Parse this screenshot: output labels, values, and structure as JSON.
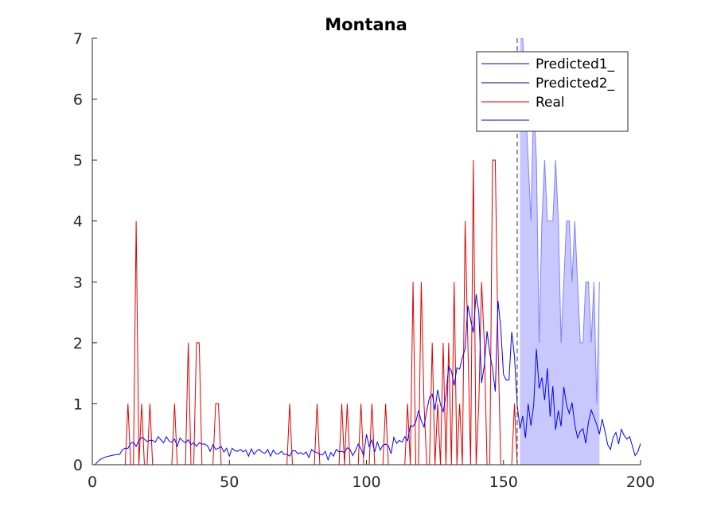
{
  "chart_data": {
    "type": "line",
    "title": "Montana",
    "xlabel": "",
    "ylabel": "",
    "xlim": [
      0,
      200
    ],
    "ylim": [
      0,
      7
    ],
    "xticks": [
      0,
      50,
      100,
      150,
      200
    ],
    "yticks": [
      0,
      1,
      2,
      3,
      4,
      5,
      6,
      7
    ],
    "grid": false,
    "legend_position": "top-right",
    "vline_x": 155,
    "x_start": 1,
    "series": [
      {
        "name": "Predicted1_",
        "color": "#0000ff",
        "style": "line",
        "values": [
          0.0,
          0.05,
          0.09,
          0.11,
          0.13,
          0.14,
          0.15,
          0.16,
          0.17,
          0.17,
          0.25,
          0.27,
          0.27,
          0.35,
          0.37,
          0.3,
          0.4,
          0.45,
          0.42,
          0.38,
          0.4,
          0.4,
          0.37,
          0.46,
          0.41,
          0.36,
          0.46,
          0.39,
          0.37,
          0.42,
          0.3,
          0.44,
          0.39,
          0.36,
          0.41,
          0.33,
          0.36,
          0.3,
          0.36,
          0.34,
          0.34,
          0.31,
          0.22,
          0.33,
          0.25,
          0.27,
          0.3,
          0.21,
          0.27,
          0.14,
          0.27,
          0.23,
          0.22,
          0.25,
          0.21,
          0.24,
          0.14,
          0.26,
          0.17,
          0.23,
          0.25,
          0.2,
          0.19,
          0.25,
          0.14,
          0.24,
          0.18,
          0.18,
          0.22,
          0.17,
          0.17,
          0.14,
          0.23,
          0.23,
          0.18,
          0.2,
          0.17,
          0.21,
          0.12,
          0.25,
          0.21,
          0.2,
          0.17,
          0.16,
          0.22,
          0.08,
          0.2,
          0.14,
          0.25,
          0.21,
          0.22,
          0.2,
          0.28,
          0.25,
          0.15,
          0.23,
          0.34,
          0.26,
          0.15,
          0.5,
          0.3,
          0.41,
          0.21,
          0.37,
          0.24,
          0.32,
          0.34,
          0.31,
          0.18,
          0.45,
          0.35,
          0.4,
          0.37,
          0.46,
          0.39,
          0.64,
          0.63,
          0.7,
          0.89,
          0.72,
          0.62,
          0.89,
          1.1,
          1.16,
          0.9,
          1.23,
          0.99,
          0.87,
          1.13,
          1.61,
          1.54,
          1.3,
          1.59,
          1.57,
          1.76,
          1.9,
          2.61,
          2.38,
          2.17,
          2.8,
          2.5,
          1.34,
          1.63,
          2.19,
          1.83,
          1.58,
          1.2,
          2.69,
          2.24,
          1.48,
          1.39,
          1.39,
          2.18,
          1.78,
          0.98,
          0.59,
          0.8,
          0.44,
          1.0,
          0.64,
          0.97,
          1.9,
          1.25,
          1.43,
          1.06,
          1.58,
          0.79,
          1.29,
          0.57,
          0.89,
          0.63,
          1.28,
          0.98,
          0.84,
          1.02,
          0.66,
          0.44,
          0.55,
          0.59,
          0.35,
          0.7,
          0.9,
          0.78,
          0.66,
          0.5,
          0.75,
          0.55,
          0.33,
          0.25,
          0.45,
          0.53,
          0.34,
          0.58,
          0.48,
          0.42,
          0.46,
          0.31,
          0.15,
          0.21,
          0.35,
          0.4
        ]
      },
      {
        "name": "Predicted2_",
        "color": "#00008b",
        "style": "line",
        "values": []
      },
      {
        "name": "Real",
        "color": "#e00000",
        "style": "line",
        "values": [
          0,
          0,
          0,
          0,
          0,
          0,
          0,
          0,
          0,
          0,
          0,
          0,
          1,
          0,
          0,
          4,
          0,
          1,
          0,
          0,
          1,
          0,
          0,
          0,
          0,
          0,
          0,
          0,
          0,
          1,
          0,
          0,
          0,
          0,
          2,
          0,
          0,
          2,
          2,
          0,
          0,
          0,
          0,
          0,
          1,
          1,
          0,
          0,
          0,
          0,
          0,
          0,
          0,
          0,
          0,
          0,
          0,
          0,
          0,
          0,
          0,
          0,
          0,
          0,
          0,
          0,
          0,
          0,
          0,
          0,
          0,
          1,
          0,
          0,
          0,
          0,
          0,
          0,
          0,
          0,
          0,
          1,
          0,
          0,
          0,
          0,
          0,
          0,
          0,
          0,
          1,
          0,
          1,
          0,
          0,
          0,
          0,
          1,
          0,
          0,
          0,
          1,
          0,
          0,
          0,
          0,
          1,
          0,
          0,
          0,
          0,
          0,
          0,
          0,
          1,
          0,
          3,
          0,
          0,
          3,
          1,
          0,
          0,
          2,
          0,
          1,
          0,
          2,
          0,
          2,
          0,
          3,
          0,
          1,
          0,
          4,
          2,
          0,
          5,
          0,
          1,
          3,
          2,
          0,
          0,
          5,
          5,
          2,
          0,
          0,
          0,
          0,
          0,
          1,
          0,
          0
        ]
      },
      {
        "name": "",
        "color": "#0000ff",
        "fill": "#c8c8ff",
        "style": "band",
        "x_start": 156,
        "upper": [
          7,
          7,
          6,
          5,
          4,
          6,
          5,
          2,
          4,
          5,
          4,
          4,
          4,
          5,
          4,
          2,
          3,
          4,
          4,
          3,
          4,
          3,
          2,
          2,
          3,
          3,
          2,
          3,
          1,
          3
        ],
        "lower": [
          0,
          0,
          0,
          0,
          0,
          0,
          0,
          0,
          0,
          0,
          0,
          0,
          0,
          0,
          0,
          0,
          0,
          0,
          0,
          0,
          0,
          0,
          0,
          0,
          0,
          0,
          0,
          0,
          0,
          0
        ]
      }
    ]
  }
}
